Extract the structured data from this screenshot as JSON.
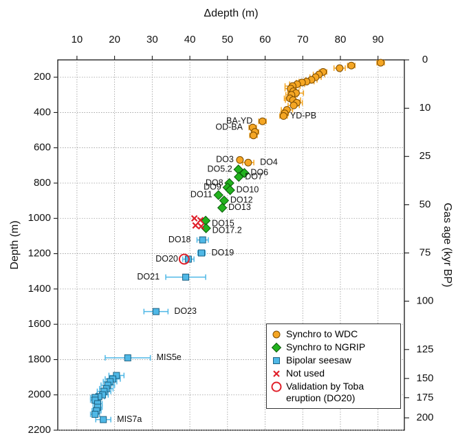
{
  "chart_data": {
    "type": "scatter",
    "x_label": "Δdepth (m)",
    "y_label": "Depth (m)",
    "y2_label": "Gas age (kyr BP)",
    "xlim": [
      4.9,
      97
    ],
    "xticks": [
      10,
      20,
      30,
      40,
      50,
      60,
      70,
      80,
      90
    ],
    "ylim": [
      102,
      2200
    ],
    "y_inverted": true,
    "yticks": [
      200,
      400,
      600,
      800,
      1000,
      1200,
      1400,
      1600,
      1800,
      2000,
      2200
    ],
    "y2ticks": [
      0,
      10,
      25,
      50,
      75,
      100,
      125,
      150,
      175,
      200
    ],
    "y2_tick_depths": [
      102,
      376,
      649,
      923,
      1196,
      1469,
      1743,
      1907,
      2016,
      2130
    ],
    "grid": true,
    "legend_position": "lower right",
    "series": [
      {
        "name": "Synchro to WDC",
        "color": "#f5a623",
        "marker": "circle",
        "x": [
          90.7,
          82.9,
          79.8,
          75.4,
          74.3,
          73.4,
          72.3,
          71,
          69.8,
          68.5,
          67.3,
          66.8,
          67.5,
          68.2,
          67,
          66.6,
          67.4,
          68.4,
          67.6,
          65.8,
          65.2,
          64.9,
          59.3,
          56.7,
          57.3,
          56.9,
          53.3,
          55.5
        ],
        "y": [
          118,
          134,
          149,
          170,
          185,
          200,
          215,
          225,
          230,
          240,
          250,
          265,
          280,
          290,
          300,
          320,
          330,
          345,
          360,
          385,
          405,
          420,
          450,
          485,
          510,
          530,
          669,
          684
        ],
        "xerr": [
          1,
          1,
          1.5,
          1,
          1.5,
          1.5,
          1.5,
          2,
          1.5,
          2,
          2,
          1.5,
          1.5,
          2,
          1.5,
          1.5,
          2,
          1.5,
          1.5,
          1.5,
          1,
          1,
          1,
          1,
          1,
          1,
          null,
          1.5
        ]
      },
      {
        "name": "Synchro to NGRIP",
        "color": "#22b21e",
        "marker": "diamond",
        "x": [
          52.9,
          54.5,
          53,
          50.5,
          50,
          50.7,
          47.6,
          49.1,
          48.6,
          44.2,
          44.3
        ],
        "y": [
          723,
          743,
          765,
          800,
          825,
          840,
          868,
          899,
          940,
          1013,
          1056
        ],
        "xerr": [
          null,
          null,
          null,
          null,
          null,
          null,
          null,
          null,
          null,
          null,
          null
        ]
      },
      {
        "name": "Bipolar seesaw",
        "color": "#4fb8e6",
        "marker": "square",
        "x": [
          43.4,
          43.1,
          39.6,
          38.9,
          31,
          23.5,
          20.5,
          19.5,
          18.8,
          18.2,
          17.8,
          17.2,
          16.8,
          15.8,
          14.8,
          14.8,
          15.5,
          15.5,
          15.2,
          14.8,
          17
        ],
        "y": [
          1122,
          1196,
          1231,
          1333,
          1528,
          1790,
          1890,
          1910,
          1925,
          1945,
          1965,
          1980,
          2000,
          2010,
          2015,
          2030,
          2050,
          2070,
          2090,
          2110,
          2140
        ],
        "xerr": [
          1.5,
          1,
          1.5,
          5.3,
          3.2,
          6,
          2,
          2,
          1.8,
          1.8,
          1.8,
          1.8,
          1.5,
          1.5,
          1.2,
          1.2,
          1.2,
          1.2,
          1.2,
          1.2,
          2
        ]
      },
      {
        "name": "Not used",
        "color": "#e0202a",
        "marker": "x",
        "x": [
          41.2,
          42.8,
          41.5,
          43
        ],
        "y": [
          1000,
          1010,
          1040,
          1045
        ],
        "xerr": [
          null,
          null,
          null,
          null
        ]
      },
      {
        "name": "Validation by Toba eruption (DO20)",
        "color": "#e0202a",
        "marker": "ring",
        "x": [
          38.5
        ],
        "y": [
          1231
        ],
        "xerr": [
          null
        ]
      }
    ],
    "annotations": [
      {
        "text": "BA-YD",
        "x": 59.3,
        "y": 450,
        "side": "left"
      },
      {
        "text": "OD-BA",
        "x": 56.7,
        "y": 485,
        "side": "left"
      },
      {
        "text": "YD-PB",
        "x": 65,
        "y": 420,
        "side": "right"
      },
      {
        "text": "DO3",
        "x": 53.3,
        "y": 669,
        "side": "left"
      },
      {
        "text": "DO4",
        "x": 55.5,
        "y": 684,
        "side": "right"
      },
      {
        "text": "DO5.2",
        "x": 52.9,
        "y": 723,
        "side": "left"
      },
      {
        "text": "DO6",
        "x": 54.5,
        "y": 743,
        "side": "right"
      },
      {
        "text": "DO7",
        "x": 53,
        "y": 765,
        "side": "right"
      },
      {
        "text": "DO8",
        "x": 50.5,
        "y": 800,
        "side": "left"
      },
      {
        "text": "DO9",
        "x": 50,
        "y": 825,
        "side": "left"
      },
      {
        "text": "DO10",
        "x": 50.7,
        "y": 840,
        "side": "right"
      },
      {
        "text": "DO11",
        "x": 47.6,
        "y": 868,
        "side": "left"
      },
      {
        "text": "DO12",
        "x": 49.1,
        "y": 899,
        "side": "right"
      },
      {
        "text": "DO13",
        "x": 48.6,
        "y": 940,
        "side": "right"
      },
      {
        "text": "DO15",
        "x": 44.2,
        "y": 1030,
        "side": "right"
      },
      {
        "text": "DO17.2",
        "x": 44.3,
        "y": 1070,
        "side": "right"
      },
      {
        "text": "DO18",
        "x": 43.4,
        "y": 1122,
        "side": "left"
      },
      {
        "text": "DO19",
        "x": 43.1,
        "y": 1196,
        "side": "right"
      },
      {
        "text": "DO20",
        "x": 38.5,
        "y": 1231,
        "side": "left"
      },
      {
        "text": "DO21",
        "x": 38.9,
        "y": 1333,
        "side": "left"
      },
      {
        "text": "DO23",
        "x": 31,
        "y": 1528,
        "side": "right"
      },
      {
        "text": "MIS5e",
        "x": 23.5,
        "y": 1790,
        "side": "right"
      },
      {
        "text": "MIS7a",
        "x": 17,
        "y": 2140,
        "side": "right"
      }
    ]
  }
}
